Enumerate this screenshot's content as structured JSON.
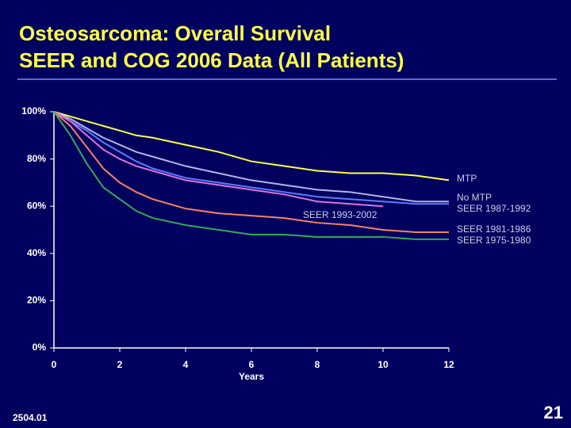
{
  "chart_data": {
    "type": "line",
    "title": [
      "Osteosarcoma: Overall Survival",
      "SEER and COG 2006 Data (All Patients)"
    ],
    "x_label": "Years",
    "x": [
      0,
      0.5,
      1,
      1.5,
      2,
      2.5,
      3,
      4,
      5,
      6,
      7,
      8,
      9,
      10,
      11,
      12
    ],
    "series": [
      {
        "name": "MTP",
        "color": "#ffff44",
        "values": [
          100,
          98,
          96,
          94,
          92,
          90,
          89,
          86,
          83,
          79,
          77,
          75,
          74,
          74,
          73,
          71
        ]
      },
      {
        "name": "No MTP",
        "color": "#b4b4e8",
        "values": [
          100,
          97,
          93,
          89,
          86,
          83,
          81,
          77,
          74,
          71,
          69,
          67,
          66,
          64,
          62,
          62
        ]
      },
      {
        "name": "SEER 1987-1992",
        "color": "#5a7cff",
        "values": [
          100,
          96,
          92,
          87,
          83,
          79,
          76,
          72,
          70,
          68,
          66,
          64,
          63,
          62,
          61,
          61
        ]
      },
      {
        "name": "SEER 1993-2002",
        "color": "#e070e0",
        "values": [
          100,
          96,
          90,
          84,
          80,
          77,
          75,
          71,
          69,
          67,
          65,
          62,
          61,
          60,
          null,
          null
        ]
      },
      {
        "name": "SEER 1981-1986",
        "color": "#ff8060",
        "values": [
          100,
          94,
          85,
          76,
          70,
          66,
          63,
          59,
          57,
          56,
          55,
          53,
          52,
          50,
          49,
          49
        ]
      },
      {
        "name": "SEER 1975-1980",
        "color": "#33aa55",
        "values": [
          100,
          90,
          78,
          68,
          63,
          58,
          55,
          52,
          50,
          48,
          48,
          47,
          47,
          47,
          46,
          46
        ]
      }
    ],
    "xlim": [
      0,
      12
    ],
    "xticks": [
      0,
      2,
      4,
      6,
      8,
      10,
      12
    ],
    "ylim": [
      0,
      100
    ],
    "yticks": [
      {
        "value": 0,
        "label": "0%"
      },
      {
        "value": 20,
        "label": "20%"
      },
      {
        "value": 40,
        "label": "40%"
      },
      {
        "value": 60,
        "label": "60%"
      },
      {
        "value": 80,
        "label": "80%"
      },
      {
        "value": 100,
        "label": "100%"
      }
    ]
  },
  "footer": {
    "code": "2504.01",
    "page": "21"
  }
}
